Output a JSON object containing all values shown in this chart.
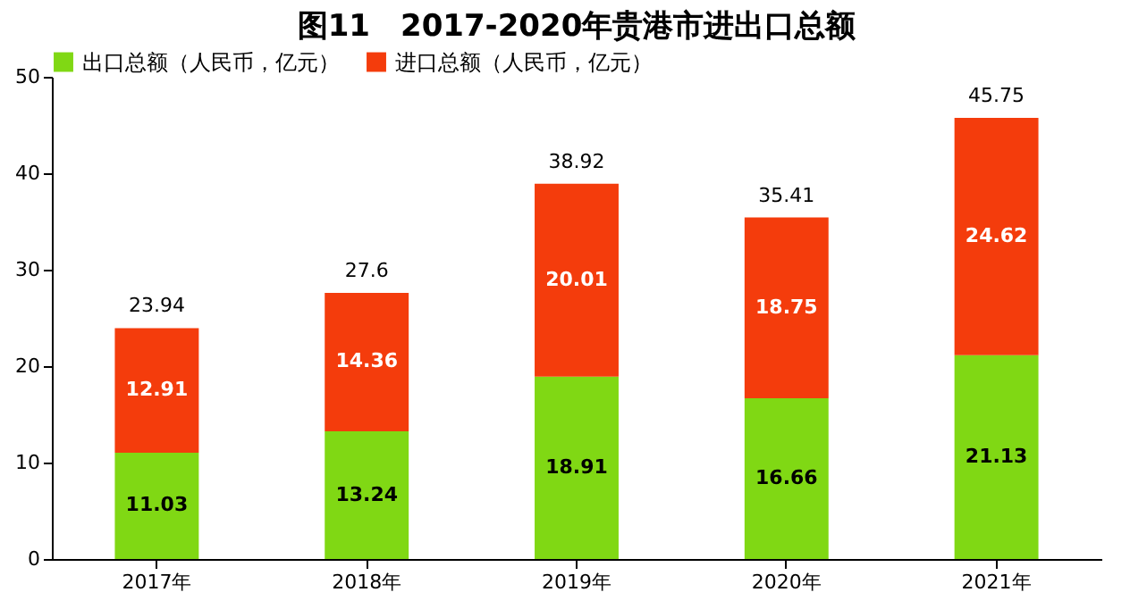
{
  "chart_data": {
    "type": "bar",
    "title": "图11　2017-2020年贵港市进出口总额",
    "categories": [
      "2017年",
      "2018年",
      "2019年",
      "2020年",
      "2021年"
    ],
    "stacked": true,
    "series": [
      {
        "name": "出口总额（人民币，亿元）",
        "color": "#80d814",
        "values": [
          11.03,
          13.24,
          18.91,
          16.66,
          21.13
        ]
      },
      {
        "name": "进口总额（人民币，亿元）",
        "color": "#f43c0c",
        "values": [
          12.91,
          14.36,
          20.01,
          18.75,
          24.62
        ]
      }
    ],
    "totals": [
      "23.94",
      "27.6",
      "38.92",
      "35.41",
      "45.75"
    ],
    "ylim": [
      0,
      50
    ],
    "yticks": [
      0,
      10,
      20,
      30,
      40,
      50
    ],
    "grid": false,
    "legend": "top",
    "data_labels": true
  }
}
